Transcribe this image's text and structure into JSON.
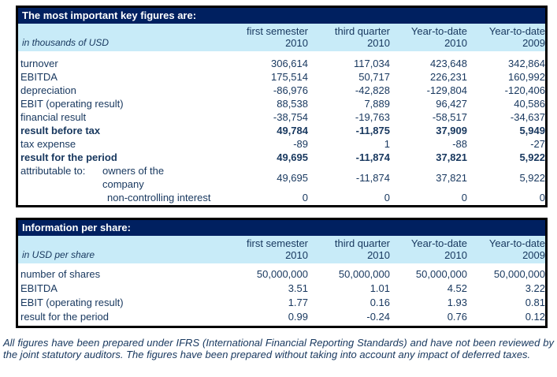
{
  "colors": {
    "title_bar_bg": "#002060",
    "band_bg": "#C8EBF8",
    "text": "#17375E",
    "border": "#000000"
  },
  "tables": [
    {
      "title": "The most important key figures are:",
      "unit_label": "in thousands of USD",
      "columns": [
        {
          "period": "first semester",
          "year": "2010"
        },
        {
          "period": "third quarter",
          "year": "2010"
        },
        {
          "period": "Year-to-date",
          "year": "2010"
        },
        {
          "period": "Year-to-date",
          "year": "2009"
        }
      ],
      "rows": [
        {
          "label": "turnover",
          "values": [
            "306,614",
            "117,034",
            "423,648",
            "342,864"
          ]
        },
        {
          "label": "EBITDA",
          "values": [
            "175,514",
            "50,717",
            "226,231",
            "160,992"
          ]
        },
        {
          "label": "depreciation",
          "values": [
            "-86,976",
            "-42,828",
            "-129,804",
            "-120,406"
          ]
        },
        {
          "label": "EBIT (operating result)",
          "values": [
            "88,538",
            "7,889",
            "96,427",
            "40,586"
          ]
        },
        {
          "label": "financial result",
          "values": [
            "-38,754",
            "-19,763",
            "-58,517",
            "-34,637"
          ]
        },
        {
          "label": "result before tax",
          "values": [
            "49,784",
            "-11,875",
            "37,909",
            "5,949"
          ]
        },
        {
          "label": "tax expense",
          "values": [
            "-89",
            "1",
            "-88",
            "-27"
          ]
        },
        {
          "label": "result for the period",
          "values": [
            "49,695",
            "-11,874",
            "37,821",
            "5,922"
          ]
        },
        {
          "prefix": "attributable to:",
          "label": "owners of the company",
          "values": [
            "49,695",
            "-11,874",
            "37,821",
            "5,922"
          ]
        },
        {
          "label": "non-controlling interest",
          "values": [
            "0",
            "0",
            "0",
            "0"
          ]
        }
      ]
    },
    {
      "title": "Information per share:",
      "unit_label": "in USD per share",
      "columns": [
        {
          "period": "first semester",
          "year": "2010"
        },
        {
          "period": "third quarter",
          "year": "2010"
        },
        {
          "period": "Year-to-date",
          "year": "2010"
        },
        {
          "period": "Year-to-date",
          "year": "2009"
        }
      ],
      "rows": [
        {
          "label": "number of shares",
          "values": [
            "50,000,000",
            "50,000,000",
            "50,000,000",
            "50,000,000"
          ]
        },
        {
          "label": "EBITDA",
          "values": [
            "3.51",
            "1.01",
            "4.52",
            "3.22"
          ]
        },
        {
          "label": "EBIT (operating result)",
          "values": [
            "1.77",
            "0.16",
            "1.93",
            "0.81"
          ]
        },
        {
          "label": "result for the period",
          "values": [
            "0.99",
            "-0.24",
            "0.76",
            "0.12"
          ]
        }
      ]
    }
  ],
  "footnote": "All figures have been prepared under IFRS (International Financial Reporting Standards) and have not been reviewed by the joint statutory auditors. The figures have been prepared without taking into account any impact of deferred taxes."
}
